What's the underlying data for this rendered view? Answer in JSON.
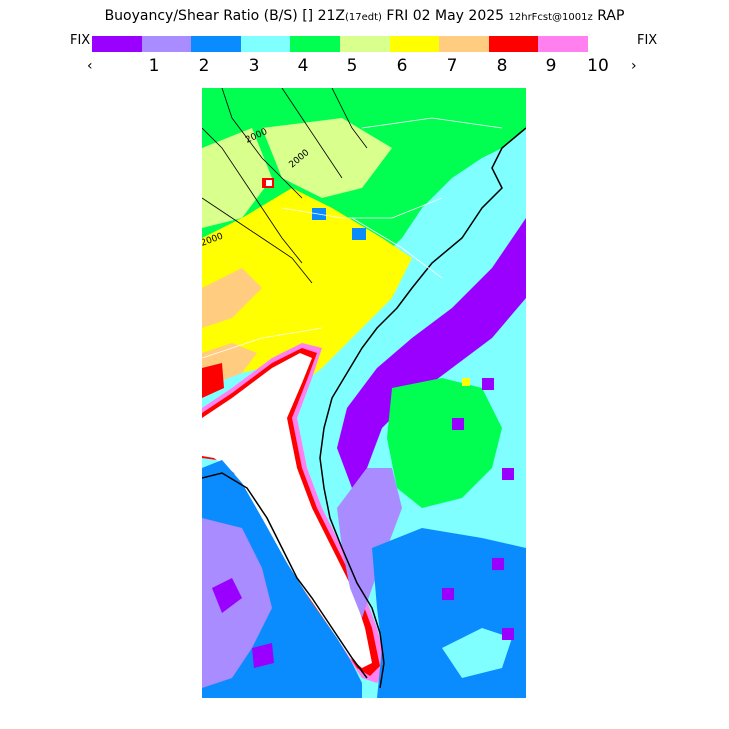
{
  "header": {
    "product": "Buoyancy/Shear Ratio (B/S)",
    "valid_time": "[] 21Z",
    "local_time": "(17edt)",
    "date": "FRI 02 May 2025",
    "forecast": "12hrFcst@1001z",
    "model": "RAP"
  },
  "legend": {
    "fix_left": "FIX",
    "fix_right": "FIX",
    "prev_icon": "‹",
    "next_icon": "›",
    "colors": [
      "#9900ff",
      "#a98cff",
      "#0a8cff",
      "#7fffff",
      "#00ff50",
      "#d9ff8c",
      "#ffff00",
      "#ffcc80",
      "#ff0000",
      "#ff80ee"
    ],
    "ticks": [
      "1",
      "2",
      "3",
      "4",
      "5",
      "6",
      "7",
      "8",
      "9",
      "10"
    ]
  },
  "map": {
    "contour_labels": [
      "2000",
      "2000",
      "2000"
    ]
  }
}
